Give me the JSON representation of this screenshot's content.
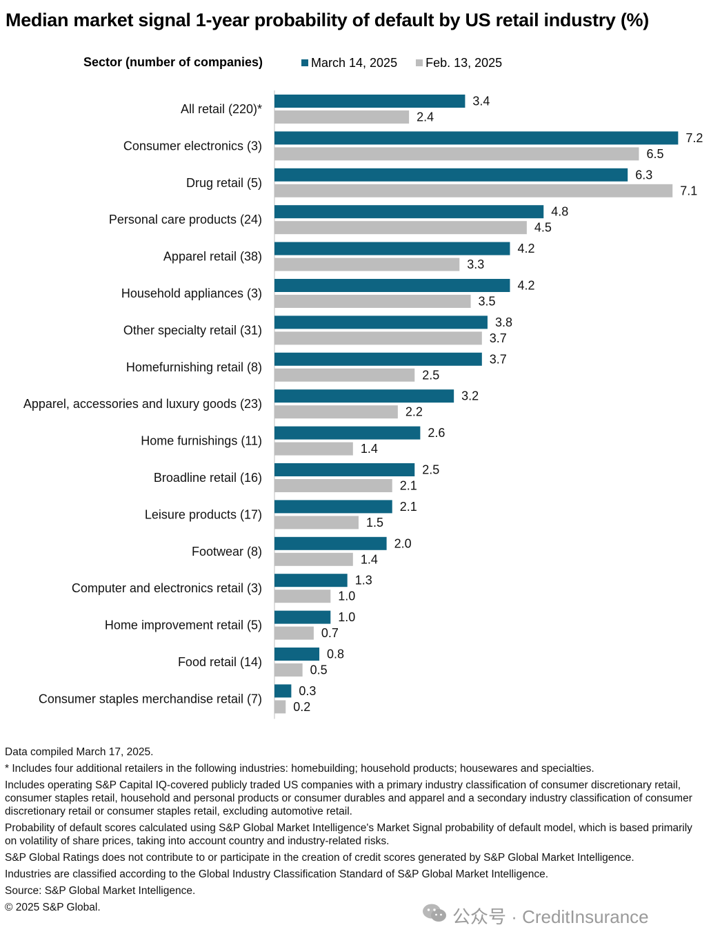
{
  "chart_data": {
    "type": "bar",
    "orientation": "horizontal",
    "title": "Median market signal 1-year probability of default by US retail industry (%)",
    "category_axis_label": "Sector (number of companies)",
    "legend_placement": "top",
    "categories": [
      "All retail (220)*",
      "Consumer electronics (3)",
      "Drug retail (5)",
      "Personal care products (24)",
      "Apparel retail (38)",
      "Household appliances (3)",
      "Other specialty retail (31)",
      "Homefurnishing retail (8)",
      "Apparel, accessories and luxury goods (23)",
      "Home furnishings (11)",
      "Broadline retail (16)",
      "Leisure products (17)",
      "Footwear (8)",
      "Computer and electronics retail (3)",
      "Home improvement retail (5)",
      "Food retail (14)",
      "Consumer staples merchandise retail (7)"
    ],
    "series": [
      {
        "name": "March 14, 2025",
        "color": "#0e6482",
        "values": [
          3.4,
          7.2,
          6.3,
          4.8,
          4.2,
          4.2,
          3.8,
          3.7,
          3.2,
          2.6,
          2.5,
          2.1,
          2.0,
          1.3,
          1.0,
          0.8,
          0.3
        ],
        "labels": [
          "3.4",
          "7.2",
          "6.3",
          "4.8",
          "4.2",
          "4.2",
          "3.8",
          "3.7",
          "3.2",
          "2.6",
          "2.5",
          "2.1",
          "2.0",
          "1.3",
          "1.0",
          "0.8",
          "0.3"
        ]
      },
      {
        "name": "Feb. 13, 2025",
        "color": "#bdbdbd",
        "values": [
          2.4,
          6.5,
          7.1,
          4.5,
          3.3,
          3.5,
          3.7,
          2.5,
          2.2,
          1.4,
          2.1,
          1.5,
          1.4,
          1.0,
          0.7,
          0.5,
          0.2
        ],
        "labels": [
          "2.4",
          "6.5",
          "7.1",
          "4.5",
          "3.3",
          "3.5",
          "3.7",
          "2.5",
          "2.2",
          "1.4",
          "2.1",
          "1.5",
          "1.4",
          "1.0",
          "0.7",
          "0.5",
          "0.2"
        ]
      }
    ],
    "xlim": [
      0,
      7.3
    ],
    "grid": false,
    "notes": [
      "Data compiled March 17, 2025.",
      "* Includes four additional retailers in the following industries: homebuilding; household products; housewares and specialties.",
      "Includes operating S&P Capital IQ-covered publicly traded US companies with a primary industry classification of consumer discretionary retail, consumer staples retail, household and personal products or consumer durables and apparel and a secondary industry classification of consumer discretionary retail or consumer staples retail, excluding automotive retail.",
      "Probability of default scores calculated using S&P Global Market Intelligence's Market Signal probability of default model, which is based primarily on volatility of share prices, taking into account country and industry-related risks.",
      "S&P Global Ratings does not contribute to or participate in the creation of credit scores generated by S&P Global Market Intelligence.",
      "Industries are classified according to the Global Industry Classification Standard of S&P Global Market Intelligence.",
      "Source: S&P Global Market Intelligence.",
      "© 2025 S&P Global."
    ]
  },
  "watermark": {
    "icon": "wechat-icon",
    "text": "公众号 · CreditInsurance"
  }
}
